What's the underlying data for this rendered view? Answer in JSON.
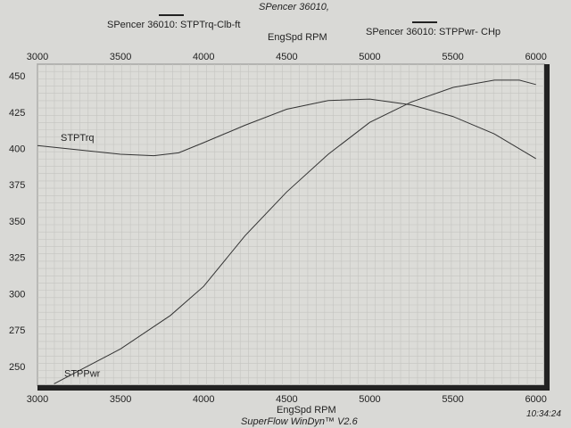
{
  "header": {
    "title": "SPencer 36010,"
  },
  "legend": [
    {
      "label": "SPencer 36010: STPTrq-Clb-ft"
    },
    {
      "label": "SPencer 36010: STPPwr- CHp"
    }
  ],
  "footer": {
    "software": "SuperFlow WinDyn™ V2.6",
    "time": "10:34:24"
  },
  "chart_data": {
    "type": "line",
    "xlabel": "EngSpd  RPM",
    "ylabel": "",
    "xlim": [
      3000,
      6050
    ],
    "ylim": [
      237,
      458
    ],
    "xticks": [
      "3000",
      "3500",
      "4000",
      "4500",
      "5000",
      "5500",
      "6000"
    ],
    "yticks": [
      "250",
      "275",
      "300",
      "325",
      "350",
      "375",
      "400",
      "425",
      "450"
    ],
    "grid": true,
    "series": [
      {
        "name": "STPTrq",
        "x": [
          3000,
          3250,
          3500,
          3700,
          3850,
          4000,
          4250,
          4500,
          4750,
          5000,
          5250,
          5500,
          5750,
          6000
        ],
        "values": [
          402,
          399,
          396,
          395,
          397,
          404,
          416,
          427,
          433,
          434,
          430,
          422,
          410,
          393
        ]
      },
      {
        "name": "STPPwr",
        "x": [
          3100,
          3300,
          3500,
          3800,
          4000,
          4250,
          4500,
          4750,
          5000,
          5250,
          5500,
          5750,
          5900,
          6000
        ],
        "values": [
          238,
          250,
          262,
          285,
          305,
          340,
          370,
          396,
          418,
          432,
          442,
          447,
          447,
          444
        ]
      }
    ]
  }
}
